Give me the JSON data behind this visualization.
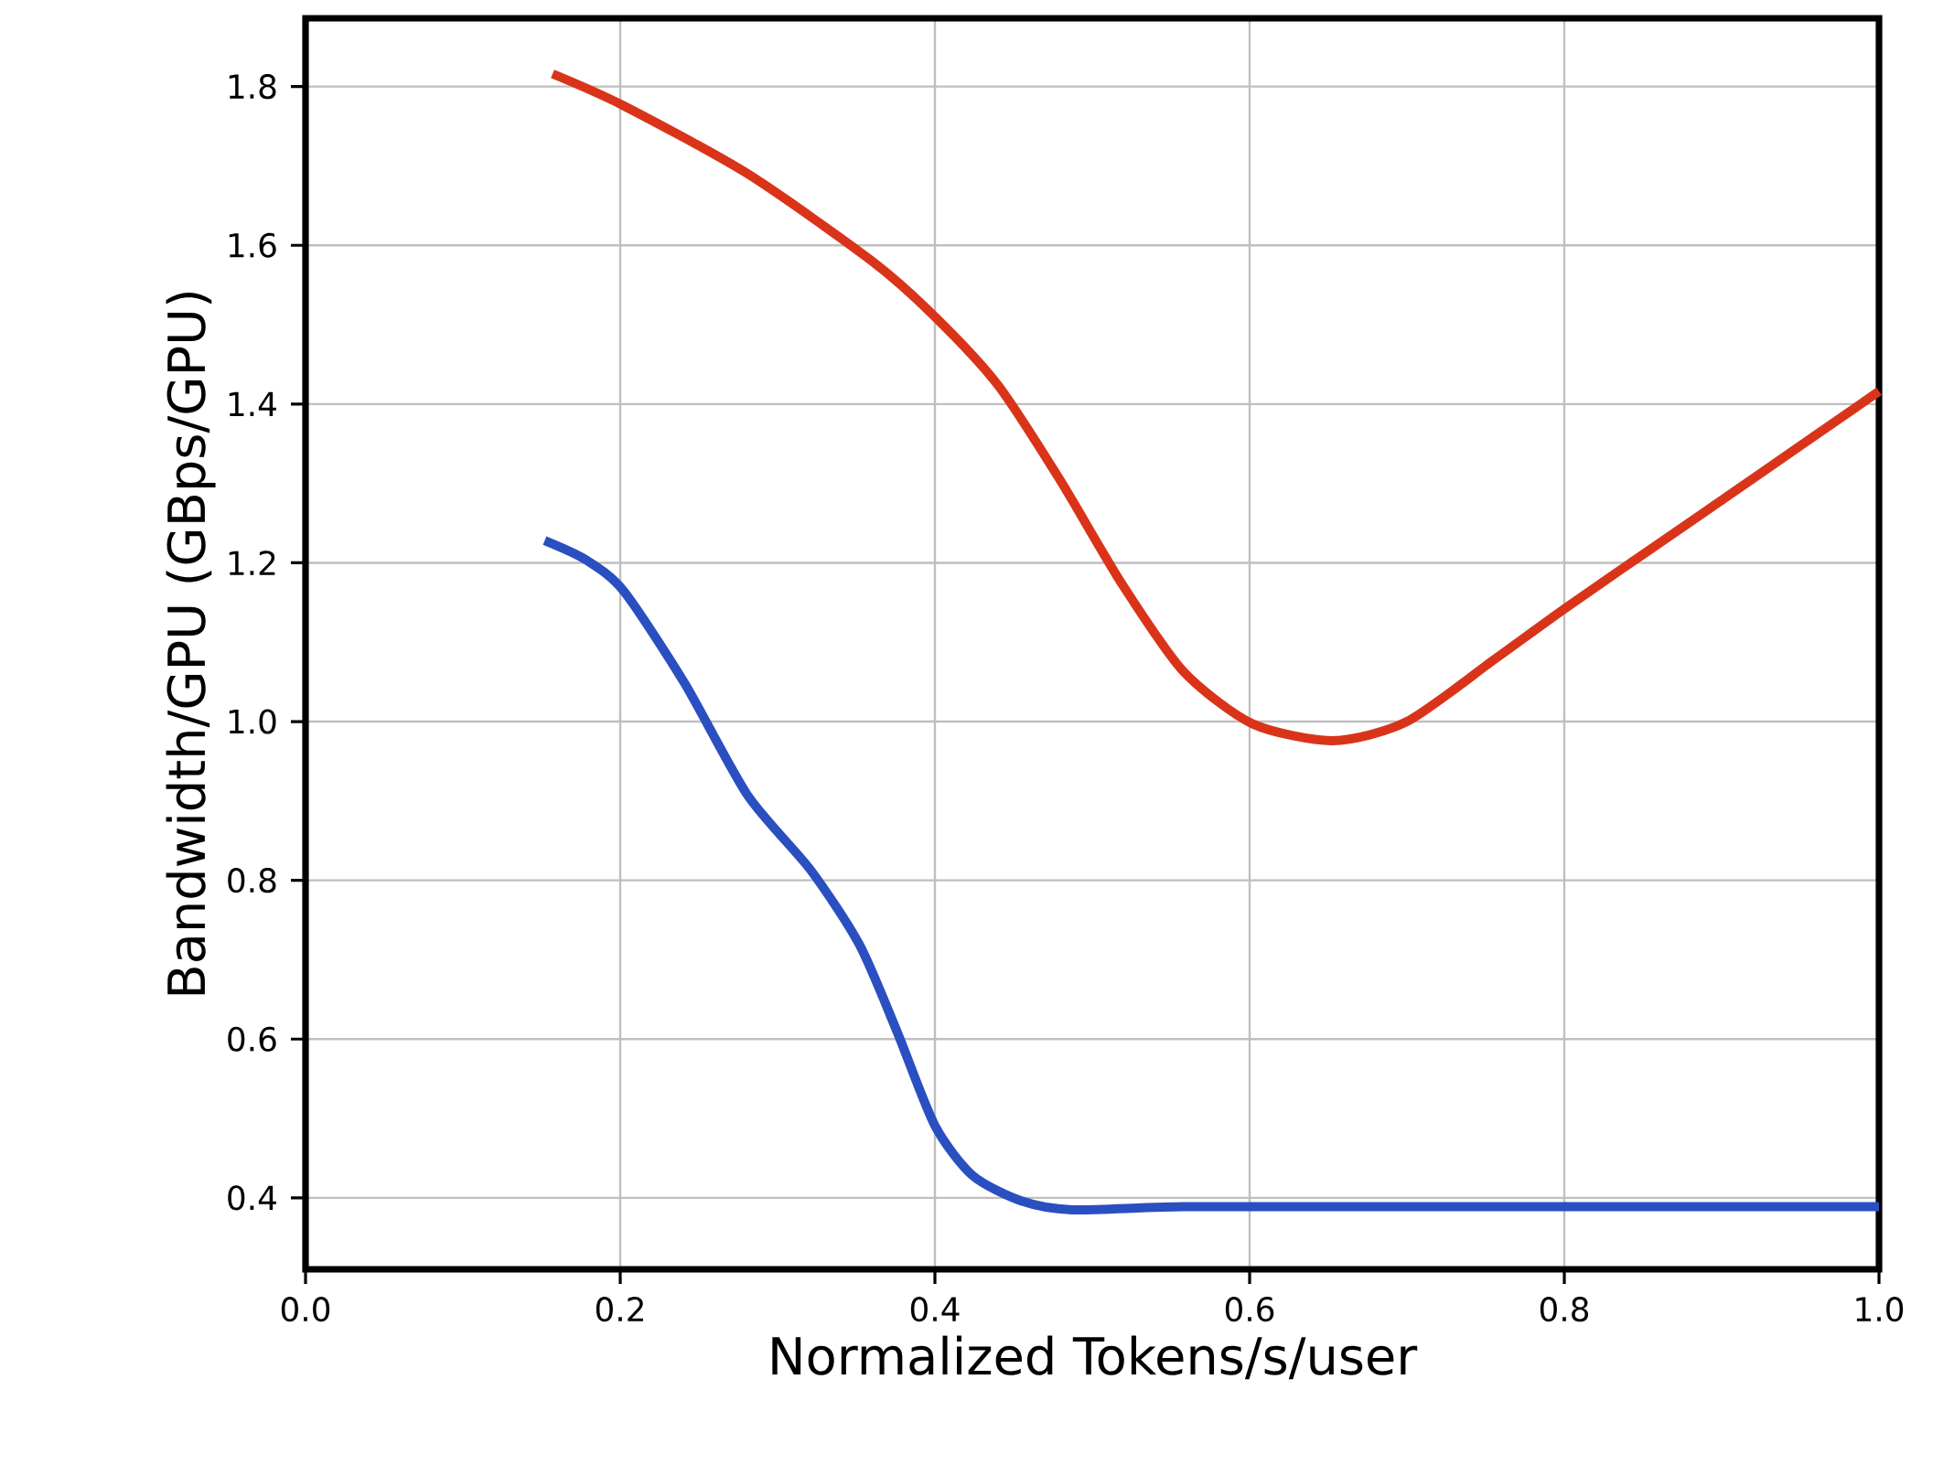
{
  "chart_data": {
    "type": "line",
    "xlabel": "Normalized Tokens/s/user",
    "ylabel": "Bandwidth/GPU (GBps/GPU)",
    "xlim": [
      0.0,
      1.0
    ],
    "ylim": [
      0.31,
      1.886
    ],
    "xticks": [
      {
        "value": 0.0,
        "label": "0.0"
      },
      0.2,
      0.4,
      0.6,
      0.8,
      {
        "value": 1.0,
        "label": "1.0"
      }
    ],
    "yticks": [
      0.4,
      0.6,
      0.8,
      {
        "value": 1.0,
        "label": "1.0"
      },
      1.2,
      1.4,
      1.6,
      1.8
    ],
    "grid": true,
    "line_style": "solid",
    "marker": "none",
    "series": [
      {
        "color": "#d93419",
        "x": [
          0.157,
          0.202,
          0.281,
          0.36,
          0.4,
          0.44,
          0.479,
          0.519,
          0.558,
          0.602,
          0.653,
          0.7,
          0.756,
          0.8,
          0.851,
          0.914,
          1.0
        ],
        "values": [
          1.816,
          1.776,
          1.69,
          1.58,
          1.51,
          1.424,
          1.306,
          1.173,
          1.063,
          0.997,
          0.976,
          1.0,
          1.079,
          1.142,
          1.212,
          1.298,
          1.416
        ]
      },
      {
        "color": "#2a4fc0",
        "x": [
          0.152,
          0.178,
          0.202,
          0.241,
          0.281,
          0.321,
          0.352,
          0.376,
          0.4,
          0.424,
          0.455,
          0.487,
          0.558,
          0.677,
          1.0
        ],
        "values": [
          1.228,
          1.204,
          1.165,
          1.048,
          0.907,
          0.813,
          0.719,
          0.609,
          0.491,
          0.428,
          0.396,
          0.385,
          0.389,
          0.389,
          0.389
        ]
      }
    ]
  }
}
